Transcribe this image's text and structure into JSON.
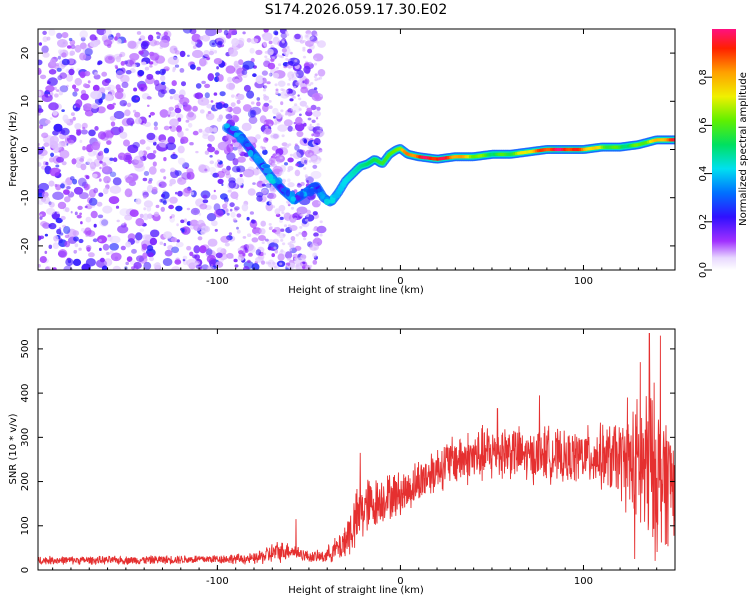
{
  "title": "S174.2026.059.17.30.E02",
  "colors": {
    "series": "#e53030",
    "frame": "#000000",
    "background": "#ffffff"
  },
  "chart_data": [
    {
      "type": "heatmap",
      "name": "spectrogram",
      "xlabel": "Height of straight line (km)",
      "ylabel": "Frequency (Hz)",
      "xlim": [
        -198,
        150
      ],
      "ylim": [
        -25,
        25
      ],
      "xticks": [
        -100,
        0,
        100
      ],
      "xtick_labels": [
        "-100",
        "0",
        "100"
      ],
      "yticks": [
        -20,
        -10,
        0,
        10,
        20
      ],
      "ytick_labels": [
        "-20",
        "-10",
        "0",
        "10",
        "20"
      ],
      "noise_region_x": [
        -198,
        -43
      ],
      "ridge": {
        "x": [
          -95,
          -88,
          -82,
          -76,
          -70,
          -64,
          -58,
          -52,
          -46,
          -42,
          -38,
          -34,
          -30,
          -26,
          -22,
          -18,
          -14,
          -10,
          -6,
          -2,
          0,
          4,
          10,
          20,
          30,
          40,
          50,
          60,
          70,
          80,
          90,
          100,
          110,
          120,
          130,
          140,
          150
        ],
        "y": [
          4.5,
          3.0,
          0.0,
          -3.0,
          -6.0,
          -8.5,
          -10.5,
          -9.0,
          -7.5,
          -10.0,
          -11.0,
          -9.0,
          -6.5,
          -5.0,
          -3.5,
          -3.0,
          -2.0,
          -3.0,
          -1.0,
          0.0,
          0.2,
          -1.0,
          -1.5,
          -2.0,
          -1.5,
          -1.5,
          -1.0,
          -1.0,
          -0.5,
          0.0,
          0.0,
          0.0,
          0.5,
          0.5,
          1.0,
          2.0,
          2.0
        ]
      },
      "colorbar": {
        "label": "Normalized spectral amplitude",
        "range": [
          0,
          1
        ],
        "ticks": [
          0.0,
          0.2,
          0.4,
          0.6,
          0.8
        ],
        "tick_labels": [
          "0.0",
          "0.2",
          "0.4",
          "0.6",
          "0.8"
        ]
      }
    },
    {
      "type": "line",
      "name": "snr",
      "xlabel": "Height of straight line (km)",
      "ylabel": "SNR (10 * v/v)",
      "xlim": [
        -198,
        150
      ],
      "ylim": [
        0,
        545
      ],
      "xticks": [
        -100,
        0,
        100
      ],
      "xtick_labels": [
        "-100",
        "0",
        "100"
      ],
      "yticks": [
        0,
        100,
        200,
        300,
        400,
        500
      ],
      "ytick_labels": [
        "0",
        "100",
        "200",
        "300",
        "400",
        "500"
      ],
      "envelope": {
        "x": [
          -198,
          -150,
          -100,
          -80,
          -68,
          -60,
          -50,
          -42,
          -36,
          -32,
          -28,
          -24,
          -20,
          -14,
          -8,
          -2,
          4,
          10,
          20,
          30,
          40,
          50,
          60,
          70,
          80,
          90,
          100,
          110,
          120,
          125,
          130,
          135,
          140,
          145,
          150
        ],
        "mean": [
          22,
          22,
          25,
          25,
          40,
          45,
          30,
          30,
          45,
          55,
          85,
          110,
          140,
          150,
          165,
          170,
          180,
          200,
          230,
          250,
          255,
          265,
          270,
          255,
          265,
          250,
          260,
          255,
          250,
          240,
          235,
          225,
          220,
          210,
          200
        ],
        "spread": [
          9,
          9,
          10,
          12,
          25,
          18,
          12,
          14,
          25,
          35,
          55,
          65,
          70,
          55,
          50,
          50,
          45,
          50,
          50,
          55,
          60,
          65,
          60,
          55,
          60,
          55,
          60,
          70,
          85,
          110,
          150,
          190,
          180,
          150,
          120
        ]
      },
      "peaks": [
        {
          "x": -57,
          "y": 115
        },
        {
          "x": -22,
          "y": 265
        },
        {
          "x": 53,
          "y": 365
        },
        {
          "x": 76,
          "y": 395
        },
        {
          "x": 124,
          "y": 390
        },
        {
          "x": 131,
          "y": 470
        },
        {
          "x": 136,
          "y": 535
        },
        {
          "x": 142,
          "y": 530
        },
        {
          "x": 128,
          "y": 25
        }
      ]
    }
  ]
}
